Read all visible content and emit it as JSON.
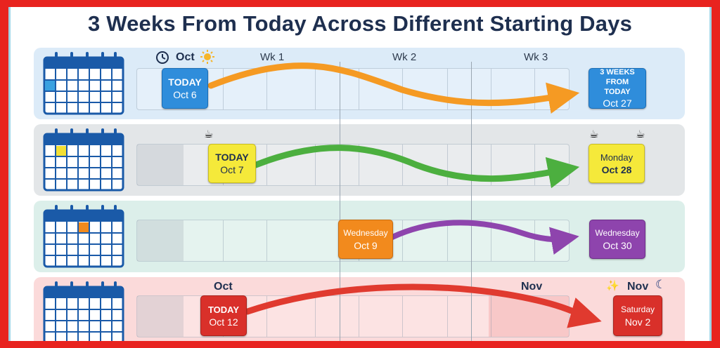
{
  "title": "3 Weeks From Today Across Different Starting Days",
  "weeks": [
    "Wk 1",
    "Wk 2",
    "Wk 3"
  ],
  "month_top": "Oct",
  "rows": [
    {
      "start": {
        "line1": "TODAY",
        "line2": "Oct 6"
      },
      "end": {
        "line1": "3 WEEKS FROM TODAY",
        "line2": "Oct 27"
      },
      "arrow_color": "#f59a23",
      "box_color": "#2f8ddb",
      "bg": "#dcebf8"
    },
    {
      "start": {
        "line1": "TODAY",
        "line2": "Oct 7"
      },
      "end": {
        "line1": "Monday",
        "line2": "Oct 28"
      },
      "arrow_color": "#4caf3f",
      "box_color": "#f5e93a",
      "bg": "#e3e6e8"
    },
    {
      "start": {
        "line1": "Wednesday",
        "line2": "Oct 9"
      },
      "end": {
        "line1": "Wednesday",
        "line2": "Oct 30"
      },
      "arrow_color": "#8e44ad",
      "box_color": "#f28a1d",
      "bg": "#dcefea"
    },
    {
      "start": {
        "line1": "TODAY",
        "line2": "Oct 12"
      },
      "end": {
        "line1": "Saturday",
        "line2": "Nov 2"
      },
      "arrow_color": "#e03a2f",
      "box_color": "#d9302a",
      "bg": "#fbdada",
      "month_left": "Oct",
      "month_mid": "Nov",
      "month_right": "Nov"
    }
  ]
}
